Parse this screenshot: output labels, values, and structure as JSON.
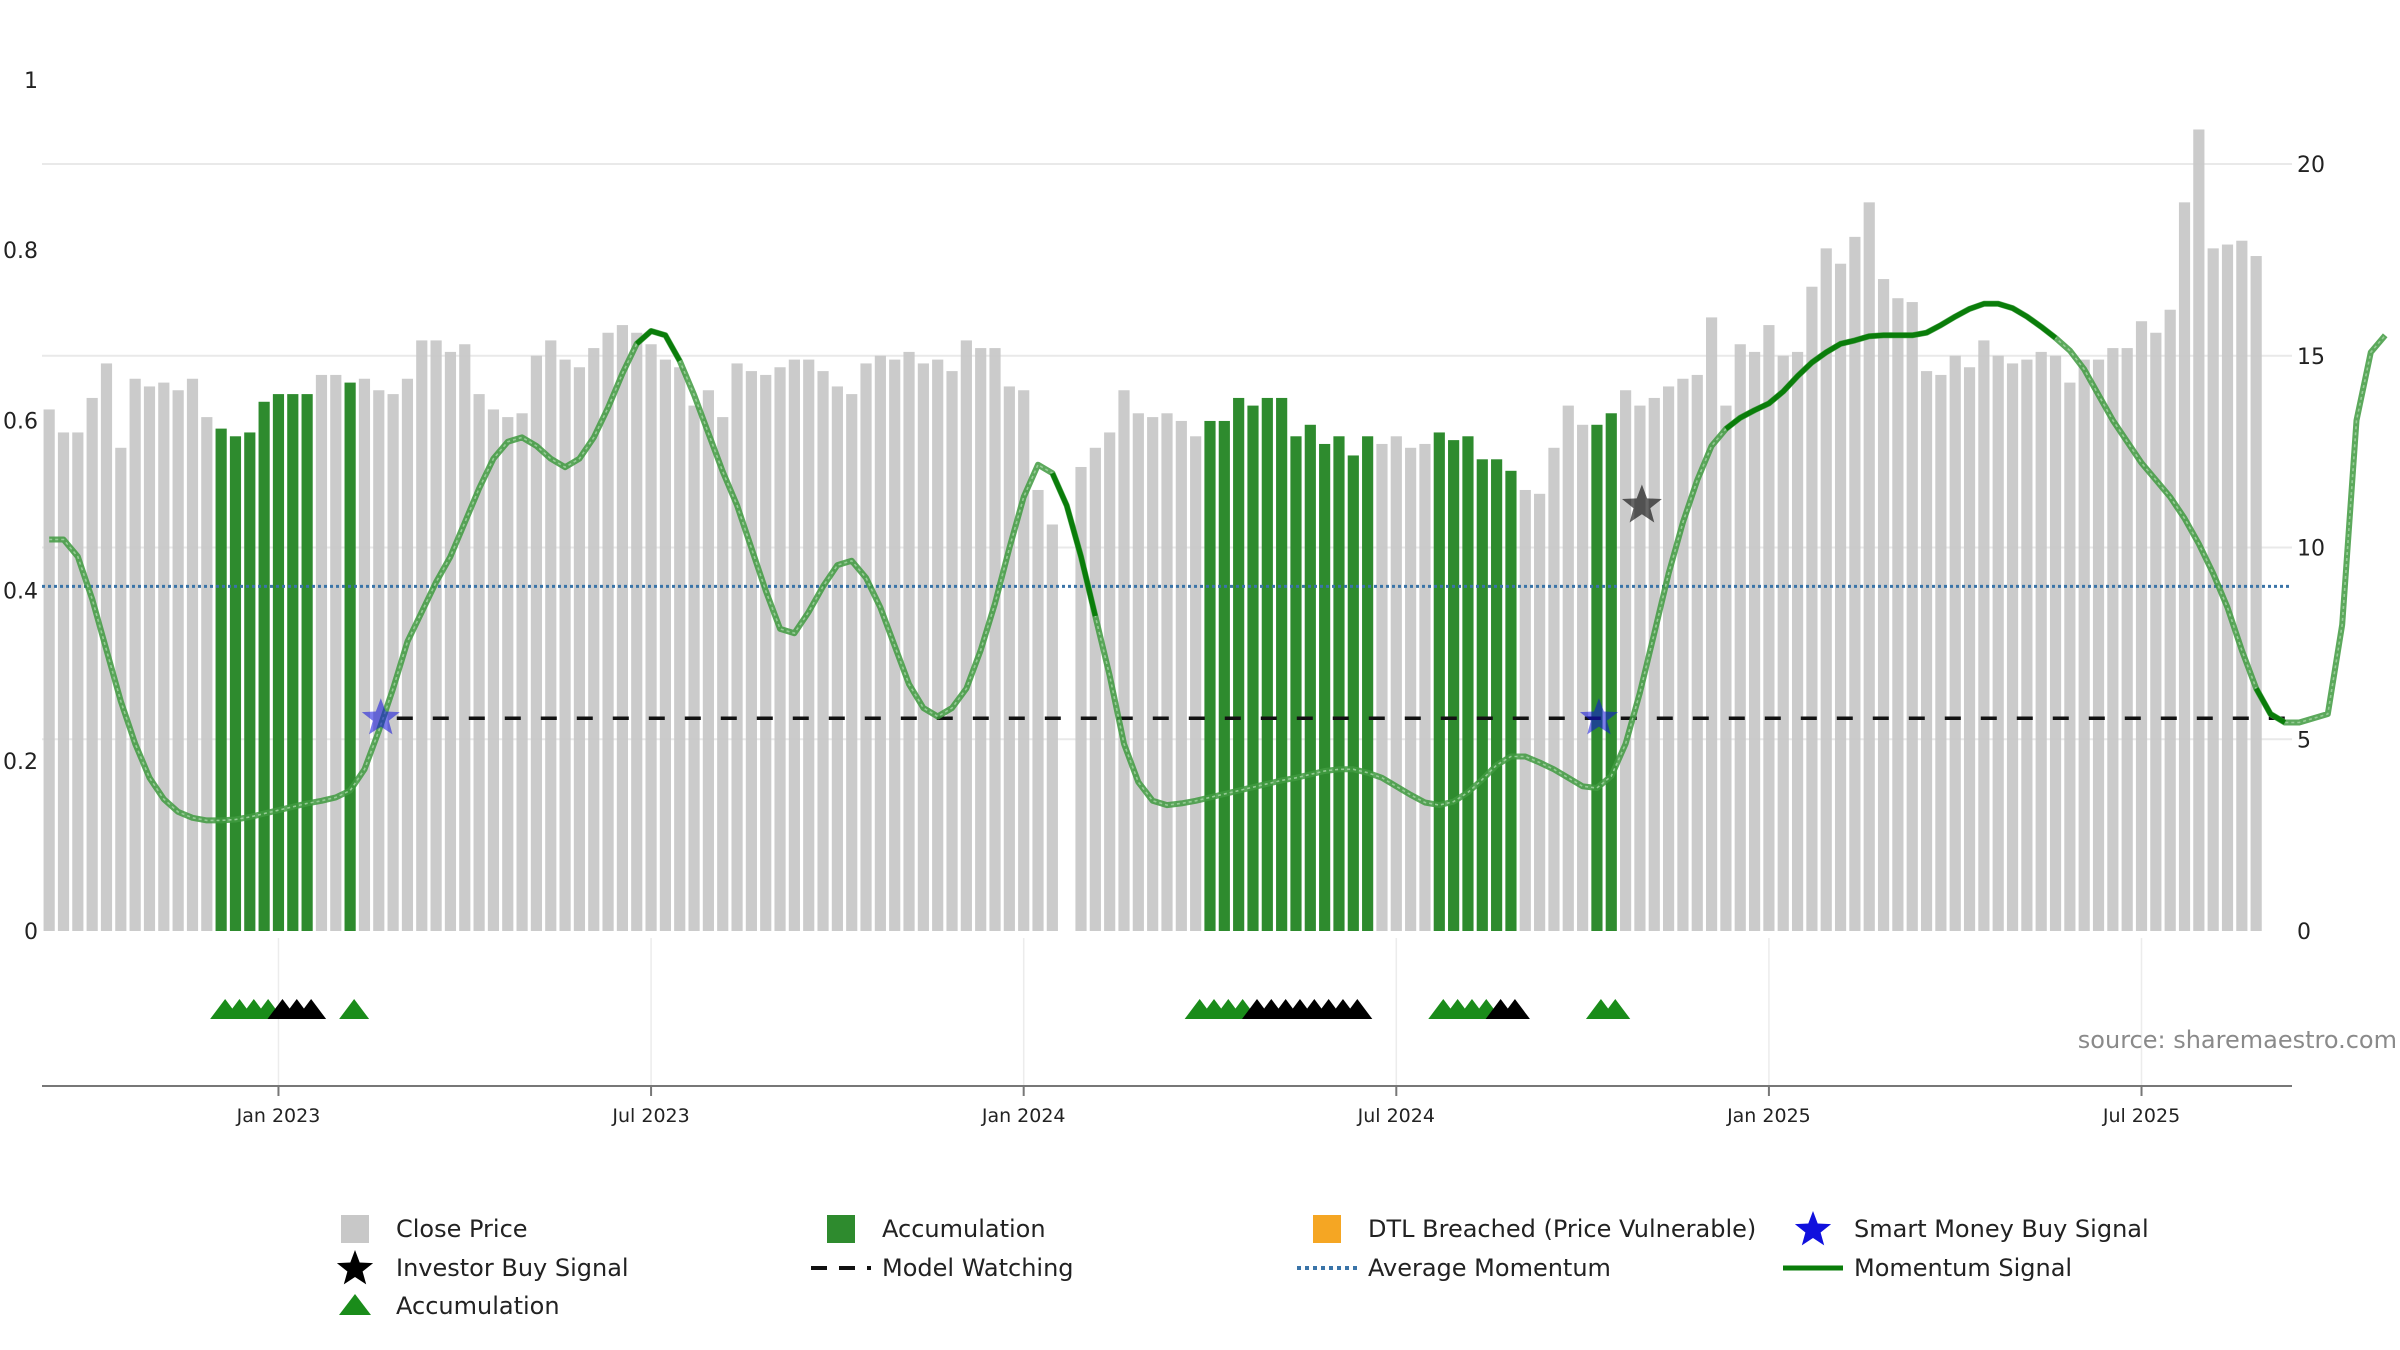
{
  "chart_data": {
    "type": "bar",
    "title": "",
    "source": "source: sharemaestro.com",
    "left_axis": {
      "ticks": [
        "0",
        "0.2",
        "0.4",
        "0.6",
        "0.8",
        "1"
      ],
      "ylim": [
        0,
        1
      ]
    },
    "right_axis": {
      "ticks": [
        "0",
        "5",
        "10",
        "15",
        "20"
      ],
      "ylim": [
        0,
        22
      ]
    },
    "x_ticks": [
      "Jan 2023",
      "Jul 2023",
      "Jan 2024",
      "Jul 2024",
      "Jan 2025",
      "Jul 2025"
    ],
    "x_range": [
      "2022-09-12",
      "2025-09-15"
    ],
    "x_tick_positions_week": [
      16,
      42,
      68,
      94,
      120,
      146
    ],
    "weeks": 157,
    "close_prices": [
      13.6,
      13.0,
      13.0,
      13.9,
      14.8,
      12.6,
      14.4,
      14.2,
      14.3,
      14.1,
      14.4,
      13.4,
      13.1,
      12.9,
      13.0,
      13.8,
      14.0,
      14.0,
      14.0,
      14.5,
      14.5,
      14.3,
      14.4,
      14.1,
      14.0,
      14.4,
      15.4,
      15.4,
      15.1,
      15.3,
      14.0,
      13.6,
      13.4,
      13.5,
      15.0,
      15.4,
      14.9,
      14.7,
      15.2,
      15.6,
      15.8,
      15.6,
      15.3,
      14.9,
      14.7,
      13.7,
      14.1,
      13.4,
      14.8,
      14.6,
      14.5,
      14.7,
      14.9,
      14.9,
      14.6,
      14.2,
      14.0,
      14.8,
      15.0,
      14.9,
      15.1,
      14.8,
      14.9,
      14.6,
      15.4,
      15.2,
      15.2,
      14.2,
      14.1,
      11.5,
      10.6,
      0,
      12.1,
      12.6,
      13.0,
      14.1,
      13.5,
      13.4,
      13.5,
      13.3,
      12.9,
      13.3,
      13.3,
      13.9,
      13.7,
      13.9,
      13.9,
      12.9,
      13.2,
      12.7,
      12.9,
      12.4,
      12.9,
      12.7,
      12.9,
      12.6,
      12.7,
      13.0,
      12.8,
      12.9,
      12.3,
      12.3,
      12.0,
      11.5,
      11.4,
      12.6,
      13.7,
      13.2,
      13.2,
      13.5,
      14.1,
      13.7,
      13.9,
      14.2,
      14.4,
      14.5,
      16.0,
      13.7,
      15.3,
      15.1,
      15.8,
      15.0,
      15.1,
      16.8,
      17.8,
      17.4,
      18.1,
      19.0,
      17.0,
      16.5,
      16.4,
      14.6,
      14.5,
      15.0,
      14.7,
      15.4,
      15.0,
      14.8,
      14.9,
      15.1,
      15.0,
      14.3,
      14.9,
      14.9,
      15.2,
      15.2,
      15.9,
      15.6,
      16.2,
      19.0,
      20.9,
      17.8,
      17.9,
      18.0,
      17.6
    ],
    "accumulation_weeks": [
      12,
      13,
      14,
      15,
      16,
      17,
      18,
      21,
      81,
      82,
      83,
      84,
      85,
      86,
      87,
      88,
      89,
      90,
      91,
      92,
      97,
      98,
      99,
      100,
      101,
      102,
      108,
      109
    ],
    "accumulation_triangles_green": [
      12,
      13,
      14,
      15,
      21,
      80,
      81,
      82,
      83,
      97,
      98,
      99,
      100,
      108,
      109
    ],
    "accumulation_triangles_black": [
      16,
      17,
      18,
      84,
      85,
      86,
      87,
      88,
      89,
      90,
      91,
      101,
      102
    ],
    "momentum_signal": [
      0.46,
      0.46,
      0.44,
      0.39,
      0.33,
      0.27,
      0.22,
      0.18,
      0.155,
      0.14,
      0.133,
      0.13,
      0.13,
      0.131,
      0.134,
      0.138,
      0.142,
      0.146,
      0.15,
      0.153,
      0.157,
      0.165,
      0.19,
      0.235,
      0.285,
      0.34,
      0.375,
      0.41,
      0.44,
      0.48,
      0.52,
      0.555,
      0.575,
      0.58,
      0.57,
      0.555,
      0.545,
      0.555,
      0.58,
      0.615,
      0.655,
      0.69,
      0.705,
      0.7,
      0.67,
      0.63,
      0.585,
      0.54,
      0.5,
      0.45,
      0.4,
      0.355,
      0.35,
      0.375,
      0.405,
      0.43,
      0.435,
      0.415,
      0.38,
      0.335,
      0.29,
      0.262,
      0.252,
      0.262,
      0.285,
      0.33,
      0.385,
      0.45,
      0.51,
      0.548,
      0.538,
      0.5,
      0.44,
      0.37,
      0.3,
      0.22,
      0.175,
      0.153,
      0.148,
      0.15,
      0.153,
      0.157,
      0.161,
      0.165,
      0.169,
      0.173,
      0.177,
      0.18,
      0.184,
      0.188,
      0.19,
      0.19,
      0.186,
      0.18,
      0.17,
      0.16,
      0.151,
      0.148,
      0.152,
      0.163,
      0.178,
      0.195,
      0.205,
      0.205,
      0.198,
      0.19,
      0.18,
      0.17,
      0.168,
      0.182,
      0.22,
      0.28,
      0.35,
      0.42,
      0.48,
      0.53,
      0.57,
      0.59,
      0.603,
      0.612,
      0.62,
      0.634,
      0.652,
      0.668,
      0.68,
      0.69,
      0.694,
      0.699,
      0.7,
      0.7,
      0.7,
      0.703,
      0.712,
      0.722,
      0.731,
      0.737,
      0.737,
      0.732,
      0.722,
      0.71,
      0.697,
      0.682,
      0.66,
      0.63,
      0.6,
      0.575,
      0.55,
      0.53,
      0.51,
      0.485,
      0.455,
      0.42,
      0.38,
      0.33,
      0.285,
      0.255,
      0.245,
      0.245,
      0.25,
      0.255,
      0.36,
      0.6,
      0.68,
      0.7
    ],
    "momentum_highlight_segments": [
      [
        41,
        44
      ],
      [
        70,
        73
      ],
      [
        117,
        140
      ],
      [
        154,
        156
      ]
    ],
    "average_momentum": 0.405,
    "model_watching_level": 0.25,
    "model_watching_start_week": 23,
    "smart_money_buy_signals": [
      {
        "week": 23,
        "value": 0.25
      },
      {
        "week": 108,
        "value": 0.25
      }
    ],
    "investor_buy_signals": [
      {
        "week": 111,
        "value": 0.5
      }
    ],
    "legend": [
      {
        "label": "Close Price",
        "marker": "gray-square"
      },
      {
        "label": "Accumulation",
        "marker": "green-square"
      },
      {
        "label": "DTL Breached (Price Vulnerable)",
        "marker": "orange-square"
      },
      {
        "label": "Smart Money Buy Signal",
        "marker": "blue-star"
      },
      {
        "label": "Investor Buy Signal",
        "marker": "black-star"
      },
      {
        "label": "Model Watching",
        "marker": "black-dash"
      },
      {
        "label": "Average Momentum",
        "marker": "blue-dotted"
      },
      {
        "label": "Momentum Signal",
        "marker": "green-line"
      },
      {
        "label": "Accumulation",
        "marker": "green-triangle"
      }
    ],
    "colors": {
      "close_bar": "#c8c8c8",
      "accumulation_bar": "#2e8b2e",
      "dtl": "#f5a623",
      "smart_money": "#1010dd",
      "investor": "#000000",
      "momentum": "#0a7d0a",
      "average": "#3a74a8",
      "triangle_green": "#1a8c1a"
    }
  }
}
